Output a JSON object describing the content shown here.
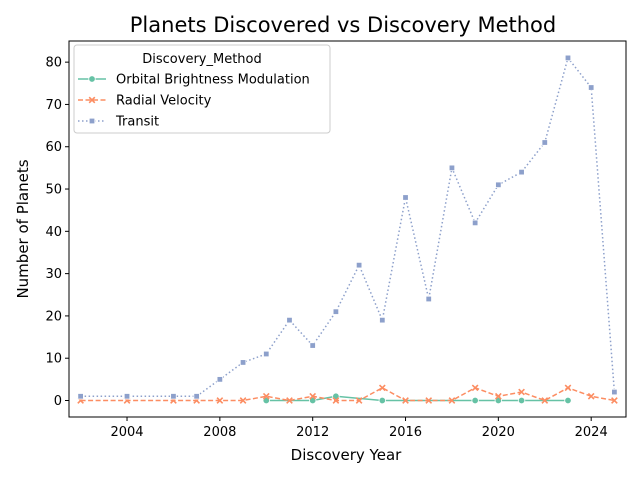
{
  "chart_data": {
    "type": "line",
    "title": "Planets Discovered vs Discovery Method",
    "xlabel": "Discovery Year",
    "ylabel": "Number of Planets",
    "xlim": [
      2001.5,
      2025.5
    ],
    "ylim": [
      -3.9,
      85
    ],
    "xticks": [
      2004,
      2008,
      2012,
      2016,
      2020,
      2024
    ],
    "yticks": [
      0,
      10,
      20,
      30,
      40,
      50,
      60,
      70,
      80
    ],
    "grid": false,
    "legend": {
      "title": "Discovery_Method",
      "placement": "top-left"
    },
    "series": [
      {
        "name": "Orbital Brightness Modulation",
        "color": "#66c2a5",
        "linestyle": "solid",
        "marker": "circle",
        "x": [
          2010,
          2012,
          2013,
          2015,
          2019,
          2020,
          2021,
          2023
        ],
        "y": [
          0,
          0,
          1,
          0,
          0,
          0,
          0,
          0
        ]
      },
      {
        "name": "Radial Velocity",
        "color": "#fc8d62",
        "linestyle": "dashed",
        "marker": "x",
        "x": [
          2002,
          2004,
          2006,
          2007,
          2008,
          2009,
          2010,
          2011,
          2012,
          2013,
          2014,
          2015,
          2016,
          2017,
          2018,
          2019,
          2020,
          2021,
          2022,
          2023,
          2024,
          2025
        ],
        "y": [
          0,
          0,
          0,
          0,
          0,
          0,
          1,
          0,
          1,
          0,
          0,
          3,
          0,
          0,
          0,
          3,
          1,
          2,
          0,
          3,
          1,
          0
        ]
      },
      {
        "name": "Transit",
        "color": "#8da0cb",
        "linestyle": "dotted",
        "marker": "square",
        "x": [
          2002,
          2004,
          2006,
          2007,
          2008,
          2009,
          2010,
          2011,
          2012,
          2013,
          2014,
          2015,
          2016,
          2017,
          2018,
          2019,
          2020,
          2021,
          2022,
          2023,
          2024,
          2025
        ],
        "y": [
          1,
          1,
          1,
          1,
          5,
          9,
          11,
          19,
          13,
          21,
          32,
          19,
          48,
          24,
          55,
          42,
          51,
          54,
          61,
          81,
          74,
          2
        ]
      }
    ]
  }
}
